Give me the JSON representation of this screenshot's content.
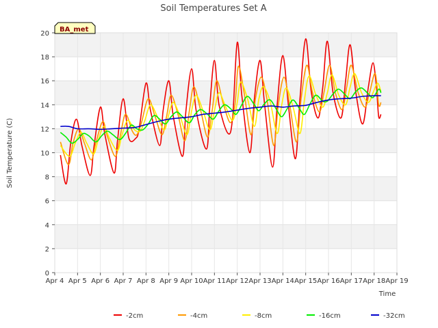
{
  "chart_data": {
    "type": "line",
    "title": "Soil Temperatures Set A",
    "xlabel": "Time",
    "ylabel": "Soil Temperature (C)",
    "badge": "BA_met",
    "ylim": [
      0,
      20
    ],
    "xlim": [
      4,
      19
    ],
    "y_ticks": [
      "0",
      "2",
      "4",
      "6",
      "8",
      "10",
      "12",
      "14",
      "16",
      "18",
      "20"
    ],
    "x_ticks": [
      "Apr 4",
      "Apr 5",
      "Apr 6",
      "Apr 7",
      "Apr 8",
      "Apr 9",
      "Apr 10",
      "Apr 11",
      "Apr 12",
      "Apr 13",
      "Apr 14",
      "Apr 15",
      "Apr 16",
      "Apr 17",
      "Apr 18",
      "Apr 19"
    ],
    "grid": true,
    "legend_position": "bottom",
    "series": [
      {
        "name": "-2cm",
        "color": "#ee0000",
        "points": [
          [
            4.25,
            9.8
          ],
          [
            4.5,
            7.4
          ],
          [
            4.7,
            10.8
          ],
          [
            4.95,
            12.8
          ],
          [
            5.2,
            10.5
          ],
          [
            5.55,
            8.1
          ],
          [
            5.72,
            10.5
          ],
          [
            6.0,
            13.8
          ],
          [
            6.2,
            11.5
          ],
          [
            6.6,
            8.3
          ],
          [
            6.75,
            11.0
          ],
          [
            7.0,
            14.5
          ],
          [
            7.25,
            11.2
          ],
          [
            7.55,
            11.2
          ],
          [
            7.7,
            12.0
          ],
          [
            8.0,
            15.8
          ],
          [
            8.2,
            13.5
          ],
          [
            8.6,
            10.6
          ],
          [
            8.75,
            13.5
          ],
          [
            9.0,
            16.0
          ],
          [
            9.2,
            13.0
          ],
          [
            9.6,
            9.7
          ],
          [
            9.75,
            13.5
          ],
          [
            10.0,
            17.0
          ],
          [
            10.2,
            13.5
          ],
          [
            10.65,
            10.3
          ],
          [
            10.8,
            14.0
          ],
          [
            11.0,
            17.7
          ],
          [
            11.2,
            14.0
          ],
          [
            11.6,
            11.6
          ],
          [
            11.8,
            13.0
          ],
          [
            12.0,
            19.2
          ],
          [
            12.2,
            14.8
          ],
          [
            12.55,
            10.0
          ],
          [
            12.75,
            14.5
          ],
          [
            13.0,
            17.7
          ],
          [
            13.2,
            14.0
          ],
          [
            13.55,
            8.8
          ],
          [
            13.75,
            14.0
          ],
          [
            14.0,
            18.1
          ],
          [
            14.25,
            13.8
          ],
          [
            14.55,
            9.5
          ],
          [
            14.75,
            14.5
          ],
          [
            15.0,
            19.5
          ],
          [
            15.25,
            15.0
          ],
          [
            15.55,
            12.9
          ],
          [
            15.75,
            15.5
          ],
          [
            15.95,
            19.3
          ],
          [
            16.2,
            15.0
          ],
          [
            16.55,
            12.9
          ],
          [
            16.75,
            16.0
          ],
          [
            16.95,
            19.0
          ],
          [
            17.2,
            15.0
          ],
          [
            17.5,
            12.4
          ],
          [
            17.75,
            15.5
          ],
          [
            17.95,
            17.5
          ],
          [
            18.1,
            15.5
          ],
          [
            18.2,
            13.0
          ],
          [
            18.3,
            13.2
          ]
        ]
      },
      {
        "name": "-4cm",
        "color": "#ff9900",
        "points": [
          [
            4.25,
            10.9
          ],
          [
            4.6,
            9.0
          ],
          [
            4.8,
            10.8
          ],
          [
            5.05,
            12.0
          ],
          [
            5.3,
            10.8
          ],
          [
            5.6,
            9.4
          ],
          [
            5.8,
            10.8
          ],
          [
            6.1,
            12.6
          ],
          [
            6.3,
            11.4
          ],
          [
            6.65,
            9.7
          ],
          [
            6.85,
            11.2
          ],
          [
            7.1,
            13.2
          ],
          [
            7.4,
            11.8
          ],
          [
            7.6,
            11.5
          ],
          [
            7.8,
            12.5
          ],
          [
            8.1,
            14.5
          ],
          [
            8.4,
            13.0
          ],
          [
            8.7,
            11.5
          ],
          [
            8.9,
            13.0
          ],
          [
            9.1,
            14.8
          ],
          [
            9.4,
            13.2
          ],
          [
            9.7,
            11.0
          ],
          [
            9.9,
            13.5
          ],
          [
            10.1,
            15.5
          ],
          [
            10.4,
            13.5
          ],
          [
            10.7,
            11.3
          ],
          [
            10.9,
            13.5
          ],
          [
            11.1,
            16.0
          ],
          [
            11.4,
            14.0
          ],
          [
            11.7,
            12.5
          ],
          [
            11.9,
            14.0
          ],
          [
            12.05,
            17.2
          ],
          [
            12.3,
            15.0
          ],
          [
            12.6,
            11.5
          ],
          [
            12.8,
            14.5
          ],
          [
            13.05,
            16.3
          ],
          [
            13.3,
            14.5
          ],
          [
            13.6,
            10.6
          ],
          [
            13.8,
            14.0
          ],
          [
            14.05,
            16.3
          ],
          [
            14.3,
            14.0
          ],
          [
            14.6,
            10.9
          ],
          [
            14.8,
            14.5
          ],
          [
            15.05,
            17.3
          ],
          [
            15.3,
            15.0
          ],
          [
            15.6,
            13.4
          ],
          [
            15.8,
            15.0
          ],
          [
            16.05,
            17.3
          ],
          [
            16.3,
            15.0
          ],
          [
            16.6,
            13.6
          ],
          [
            16.8,
            15.5
          ],
          [
            17.0,
            17.3
          ],
          [
            17.3,
            15.0
          ],
          [
            17.6,
            13.8
          ],
          [
            17.8,
            15.0
          ],
          [
            18.05,
            16.6
          ],
          [
            18.2,
            14.0
          ],
          [
            18.3,
            14.2
          ]
        ]
      },
      {
        "name": "-8cm",
        "color": "#ffee00",
        "points": [
          [
            4.25,
            10.6
          ],
          [
            4.65,
            9.7
          ],
          [
            4.9,
            10.8
          ],
          [
            5.15,
            11.7
          ],
          [
            5.4,
            10.8
          ],
          [
            5.7,
            9.9
          ],
          [
            5.9,
            11.0
          ],
          [
            6.15,
            12.2
          ],
          [
            6.4,
            11.2
          ],
          [
            6.75,
            10.2
          ],
          [
            6.95,
            11.5
          ],
          [
            7.2,
            12.7
          ],
          [
            7.5,
            11.9
          ],
          [
            7.75,
            11.8
          ],
          [
            7.95,
            12.7
          ],
          [
            8.2,
            14.0
          ],
          [
            8.5,
            13.0
          ],
          [
            8.8,
            11.9
          ],
          [
            9.0,
            13.2
          ],
          [
            9.2,
            14.2
          ],
          [
            9.5,
            13.0
          ],
          [
            9.8,
            11.5
          ],
          [
            10.0,
            13.5
          ],
          [
            10.2,
            14.8
          ],
          [
            10.5,
            13.5
          ],
          [
            10.8,
            11.9
          ],
          [
            11.0,
            13.5
          ],
          [
            11.2,
            15.0
          ],
          [
            11.5,
            13.8
          ],
          [
            11.8,
            12.7
          ],
          [
            12.0,
            14.2
          ],
          [
            12.15,
            15.9
          ],
          [
            12.45,
            14.5
          ],
          [
            12.75,
            12.2
          ],
          [
            12.95,
            14.5
          ],
          [
            13.15,
            15.5
          ],
          [
            13.45,
            14.2
          ],
          [
            13.75,
            11.6
          ],
          [
            13.95,
            14.0
          ],
          [
            14.15,
            15.4
          ],
          [
            14.45,
            13.8
          ],
          [
            14.75,
            11.6
          ],
          [
            14.95,
            14.5
          ],
          [
            15.15,
            16.4
          ],
          [
            15.45,
            14.8
          ],
          [
            15.75,
            13.8
          ],
          [
            15.95,
            15.0
          ],
          [
            16.15,
            16.5
          ],
          [
            16.45,
            14.8
          ],
          [
            16.75,
            14.0
          ],
          [
            16.95,
            15.5
          ],
          [
            17.15,
            16.6
          ],
          [
            17.45,
            15.0
          ],
          [
            17.75,
            14.2
          ],
          [
            17.95,
            15.0
          ],
          [
            18.15,
            15.8
          ],
          [
            18.3,
            15.1
          ]
        ]
      },
      {
        "name": "-16cm",
        "color": "#00ee00",
        "points": [
          [
            4.25,
            11.7
          ],
          [
            4.5,
            11.3
          ],
          [
            4.75,
            10.8
          ],
          [
            5.0,
            11.1
          ],
          [
            5.25,
            11.6
          ],
          [
            5.5,
            11.4
          ],
          [
            5.8,
            10.9
          ],
          [
            6.05,
            11.4
          ],
          [
            6.3,
            11.8
          ],
          [
            6.55,
            11.5
          ],
          [
            6.85,
            11.1
          ],
          [
            7.1,
            11.6
          ],
          [
            7.35,
            12.3
          ],
          [
            7.6,
            12.0
          ],
          [
            7.85,
            11.9
          ],
          [
            8.1,
            12.4
          ],
          [
            8.35,
            13.1
          ],
          [
            8.6,
            12.8
          ],
          [
            8.85,
            12.4
          ],
          [
            9.1,
            13.0
          ],
          [
            9.35,
            13.4
          ],
          [
            9.6,
            13.0
          ],
          [
            9.9,
            12.5
          ],
          [
            10.15,
            13.2
          ],
          [
            10.4,
            13.6
          ],
          [
            10.7,
            13.2
          ],
          [
            10.95,
            12.8
          ],
          [
            11.2,
            13.5
          ],
          [
            11.45,
            14.0
          ],
          [
            11.75,
            13.6
          ],
          [
            11.95,
            13.2
          ],
          [
            12.2,
            14.0
          ],
          [
            12.45,
            14.7
          ],
          [
            12.75,
            14.0
          ],
          [
            12.95,
            13.5
          ],
          [
            13.2,
            14.1
          ],
          [
            13.45,
            14.4
          ],
          [
            13.75,
            13.5
          ],
          [
            13.95,
            13.0
          ],
          [
            14.2,
            13.7
          ],
          [
            14.45,
            14.4
          ],
          [
            14.75,
            13.6
          ],
          [
            14.95,
            13.2
          ],
          [
            15.2,
            14.1
          ],
          [
            15.45,
            14.8
          ],
          [
            15.75,
            14.3
          ],
          [
            15.95,
            14.3
          ],
          [
            16.2,
            14.9
          ],
          [
            16.45,
            15.3
          ],
          [
            16.75,
            14.8
          ],
          [
            16.95,
            14.5
          ],
          [
            17.2,
            15.1
          ],
          [
            17.45,
            15.4
          ],
          [
            17.75,
            14.9
          ],
          [
            17.95,
            14.6
          ],
          [
            18.2,
            15.3
          ],
          [
            18.3,
            15.0
          ]
        ]
      },
      {
        "name": "-32cm",
        "color": "#0000cc",
        "points": [
          [
            4.25,
            12.2
          ],
          [
            4.6,
            12.2
          ],
          [
            5.0,
            12.0
          ],
          [
            5.5,
            12.0
          ],
          [
            6.0,
            11.95
          ],
          [
            6.5,
            12.0
          ],
          [
            7.0,
            12.05
          ],
          [
            7.5,
            12.1
          ],
          [
            8.0,
            12.35
          ],
          [
            8.5,
            12.6
          ],
          [
            9.0,
            12.8
          ],
          [
            9.5,
            12.9
          ],
          [
            10.0,
            13.0
          ],
          [
            10.5,
            13.2
          ],
          [
            11.0,
            13.3
          ],
          [
            11.5,
            13.4
          ],
          [
            12.0,
            13.55
          ],
          [
            12.5,
            13.7
          ],
          [
            13.0,
            13.8
          ],
          [
            13.5,
            13.9
          ],
          [
            14.0,
            13.8
          ],
          [
            14.5,
            13.9
          ],
          [
            15.0,
            13.95
          ],
          [
            15.5,
            14.2
          ],
          [
            16.0,
            14.4
          ],
          [
            16.5,
            14.5
          ],
          [
            17.0,
            14.55
          ],
          [
            17.5,
            14.7
          ],
          [
            18.0,
            14.75
          ],
          [
            18.3,
            14.75
          ]
        ]
      }
    ]
  }
}
